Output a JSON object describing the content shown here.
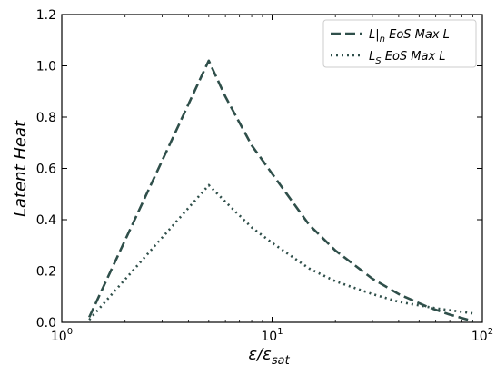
{
  "chart_data": {
    "type": "line",
    "xscale": "log",
    "xlim": [
      1,
      100
    ],
    "ylim": [
      0,
      1.2
    ],
    "xticks": [
      {
        "value": 1,
        "mantissa": "10",
        "exponent": "0"
      },
      {
        "value": 10,
        "mantissa": "10",
        "exponent": "1"
      },
      {
        "value": 100,
        "mantissa": "10",
        "exponent": "2"
      }
    ],
    "yticks": [
      "0.0",
      "0.2",
      "0.4",
      "0.6",
      "0.8",
      "1.0",
      "1.2"
    ],
    "xlabel": {
      "base": "ε/ε",
      "sub": "sat"
    },
    "ylabel": "Latent Heat",
    "grid": false,
    "legend_position": "top-right",
    "series": [
      {
        "name": {
          "base": "L|",
          "sub": "n",
          "rest": " EoS Max L"
        },
        "style": "dashed",
        "color": "#2f4f4a",
        "x": [
          1.35,
          5.0,
          6,
          8,
          10,
          15,
          20,
          30,
          40,
          55,
          70,
          90
        ],
        "y": [
          0.02,
          1.02,
          0.88,
          0.69,
          0.58,
          0.38,
          0.28,
          0.17,
          0.11,
          0.06,
          0.03,
          0.005
        ]
      },
      {
        "name": {
          "base": "L",
          "sub": "S",
          "rest": " EoS Max L"
        },
        "style": "dotted",
        "color": "#2f4f4a",
        "x": [
          1.35,
          5.0,
          6,
          8,
          10,
          15,
          20,
          30,
          40,
          60,
          90
        ],
        "y": [
          0.01,
          0.535,
          0.47,
          0.37,
          0.31,
          0.21,
          0.16,
          0.11,
          0.08,
          0.055,
          0.035
        ]
      }
    ]
  }
}
